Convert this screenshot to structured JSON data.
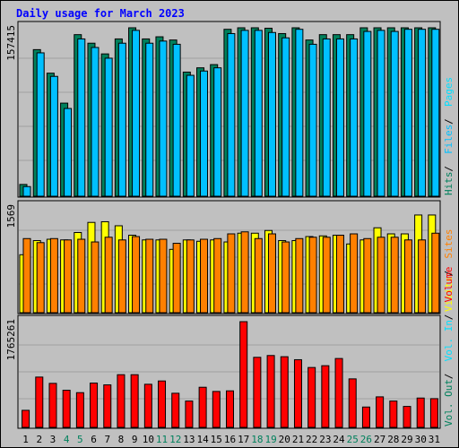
{
  "title": "Daily usage for March 2023",
  "colors": {
    "hits": "#00805c",
    "files": "#00c0ff",
    "pages": "#00e0ff",
    "visits": "#ffff00",
    "sites": "#ff8000",
    "volume": "#ff0000",
    "weekend": "#00805c",
    "weekday": "#000000",
    "legend_sep": "#000000"
  },
  "legends": {
    "top": [
      {
        "label": "Hits",
        "color_key": "hits"
      },
      {
        "label": "Files",
        "color_key": "files"
      },
      {
        "label": "Pages",
        "color_key": "pages"
      }
    ],
    "middle": [
      {
        "label": "Visits",
        "color_key": "visits"
      },
      {
        "label": "Sites",
        "color_key": "sites"
      }
    ],
    "bottom": [
      {
        "label": "Vol. Out",
        "color_key": "hits"
      },
      {
        "label": "Vol. In",
        "color_key": "pages"
      },
      {
        "label": "Volume",
        "color_key": "volume"
      }
    ]
  },
  "chart_data": [
    {
      "type": "bar",
      "panel": "top",
      "ymax_label": "157415",
      "ylim": [
        0,
        157415
      ],
      "categories": [
        "1",
        "2",
        "3",
        "4",
        "5",
        "6",
        "7",
        "8",
        "9",
        "10",
        "11",
        "12",
        "13",
        "14",
        "15",
        "16",
        "17",
        "18",
        "19",
        "20",
        "21",
        "22",
        "23",
        "24",
        "25",
        "26",
        "27",
        "28",
        "29",
        "30",
        "31"
      ],
      "weekend": [
        false,
        false,
        false,
        true,
        true,
        false,
        false,
        false,
        false,
        false,
        true,
        true,
        false,
        false,
        false,
        false,
        false,
        true,
        true,
        false,
        false,
        false,
        false,
        false,
        true,
        true,
        false,
        false,
        false,
        false,
        false
      ],
      "series": [
        {
          "name": "Hits",
          "values": [
            11000,
            137000,
            115000,
            87000,
            151000,
            143000,
            133000,
            147000,
            159000,
            147000,
            149000,
            146000,
            116000,
            120000,
            123000,
            156000,
            159000,
            159000,
            157000,
            152000,
            160000,
            146000,
            151000,
            151000,
            151000,
            158000,
            159000,
            158000,
            160000,
            160000,
            160000
          ]
        },
        {
          "name": "Files",
          "values": [
            9000,
            134000,
            112000,
            82000,
            147000,
            139000,
            129000,
            143000,
            155000,
            143000,
            145000,
            142000,
            113000,
            117000,
            120000,
            152000,
            155000,
            155000,
            153000,
            148000,
            156000,
            142000,
            147000,
            147000,
            147000,
            154000,
            155000,
            154000,
            156000,
            156000,
            156000
          ]
        }
      ]
    },
    {
      "type": "bar",
      "panel": "middle",
      "ymax_label": "1569",
      "ylim": [
        0,
        1569
      ],
      "categories": [
        "1",
        "2",
        "3",
        "4",
        "5",
        "6",
        "7",
        "8",
        "9",
        "10",
        "11",
        "12",
        "13",
        "14",
        "15",
        "16",
        "17",
        "18",
        "19",
        "20",
        "21",
        "22",
        "23",
        "24",
        "25",
        "26",
        "27",
        "28",
        "29",
        "30",
        "31"
      ],
      "series": [
        {
          "name": "Visits",
          "values": [
            860,
            1070,
            1090,
            1080,
            1190,
            1340,
            1350,
            1290,
            1150,
            1080,
            1080,
            940,
            1080,
            1060,
            1080,
            1050,
            1180,
            1180,
            1220,
            1070,
            1070,
            1130,
            1140,
            1150,
            1020,
            1080,
            1260,
            1170,
            1170,
            1450,
            1450
          ]
        },
        {
          "name": "Sites",
          "values": [
            1100,
            1040,
            1100,
            1080,
            1090,
            1050,
            1120,
            1080,
            1130,
            1090,
            1090,
            1030,
            1080,
            1090,
            1100,
            1170,
            1200,
            1100,
            1170,
            1050,
            1100,
            1120,
            1120,
            1150,
            1170,
            1100,
            1120,
            1120,
            1080,
            1080,
            1180
          ]
        }
      ]
    },
    {
      "type": "bar",
      "panel": "bottom",
      "ymax_label": "1765261",
      "ylim": [
        0,
        1765261
      ],
      "categories": [
        "1",
        "2",
        "3",
        "4",
        "5",
        "6",
        "7",
        "8",
        "9",
        "10",
        "11",
        "12",
        "13",
        "14",
        "15",
        "16",
        "17",
        "18",
        "19",
        "20",
        "21",
        "22",
        "23",
        "24",
        "25",
        "26",
        "27",
        "28",
        "29",
        "30",
        "31"
      ],
      "series": [
        {
          "name": "Volume",
          "values": [
            285000,
            840000,
            735000,
            620000,
            580000,
            740000,
            710000,
            880000,
            880000,
            720000,
            775000,
            570000,
            440000,
            670000,
            600000,
            610000,
            1765261,
            1170000,
            1200000,
            1180000,
            1130000,
            1000000,
            1030000,
            1150000,
            810000,
            340000,
            510000,
            440000,
            350000,
            490000,
            480000
          ]
        }
      ]
    }
  ]
}
